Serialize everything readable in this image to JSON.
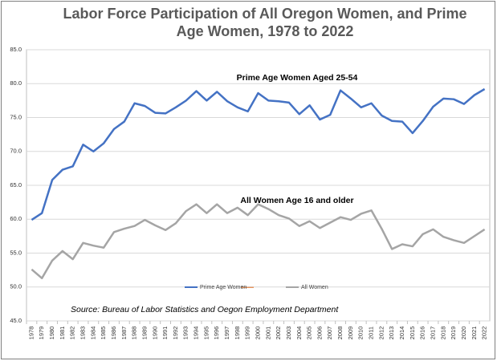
{
  "chart_data": {
    "type": "line",
    "title": [
      "Labor Force Participation of All Oregon Women, and Prime",
      "Age Women, 1978 to 2022"
    ],
    "annotations": [
      "Prime Age Women Aged 25-54",
      "All Women Age 16 and older"
    ],
    "source": "Source:  Bureau of Labor Statistics and Oegon Employment Department",
    "categories": [
      "1978",
      "1979",
      "1980",
      "1981",
      "1982",
      "1983",
      "1984",
      "1985",
      "1986",
      "1987",
      "1988",
      "1989",
      "1990",
      "1991",
      "1992",
      "1993",
      "1994",
      "1995",
      "1996",
      "1997",
      "1998",
      "1999",
      "2000",
      "2001",
      "2002",
      "2003",
      "2004",
      "2005",
      "2006",
      "2007",
      "2008",
      "2009",
      "2010",
      "2011",
      "2012",
      "2013",
      "2014",
      "2015",
      "2016",
      "2017",
      "2018",
      "2019",
      "2020",
      "2021",
      "2022"
    ],
    "series": [
      {
        "name": "Prime Age Women",
        "color": "#4472c4",
        "values": [
          59.9,
          60.9,
          65.8,
          67.3,
          67.8,
          71.0,
          70.0,
          71.2,
          73.3,
          74.4,
          77.1,
          76.7,
          75.7,
          75.6,
          76.5,
          77.5,
          78.9,
          77.5,
          78.8,
          77.4,
          76.5,
          75.9,
          78.6,
          77.5,
          77.4,
          77.2,
          75.5,
          76.8,
          74.7,
          75.4,
          79.0,
          77.8,
          76.5,
          77.1,
          75.3,
          74.5,
          74.4,
          72.7,
          74.5,
          76.6,
          77.8,
          77.7,
          77.0,
          78.3,
          79.2
        ]
      },
      {
        "name": "All Women",
        "color": "#a5a5a5",
        "values": [
          52.6,
          51.3,
          53.9,
          55.3,
          54.1,
          56.5,
          56.1,
          55.8,
          58.1,
          58.6,
          59.0,
          59.9,
          59.1,
          58.4,
          59.4,
          61.2,
          62.2,
          60.9,
          62.2,
          60.9,
          61.7,
          60.6,
          62.2,
          61.5,
          60.6,
          60.1,
          59.0,
          59.7,
          58.7,
          59.5,
          60.3,
          59.9,
          60.8,
          61.3,
          58.6,
          55.6,
          56.3,
          56.0,
          57.8,
          58.5,
          57.4,
          56.9,
          56.5,
          57.5,
          58.5
        ]
      }
    ],
    "ylim": [
      45,
      85
    ],
    "yticks": [
      {
        "value": 45,
        "label": "45.0"
      },
      {
        "value": 50,
        "label": "50.0"
      },
      {
        "value": 55,
        "label": "55.0"
      },
      {
        "value": 60,
        "label": "60.0"
      },
      {
        "value": 65,
        "label": "65.0"
      },
      {
        "value": 70,
        "label": "70.0"
      },
      {
        "value": 75,
        "label": "75.0"
      },
      {
        "value": 80,
        "label": "80.0"
      },
      {
        "value": 85,
        "label": "85.0"
      }
    ],
    "grid": true
  }
}
